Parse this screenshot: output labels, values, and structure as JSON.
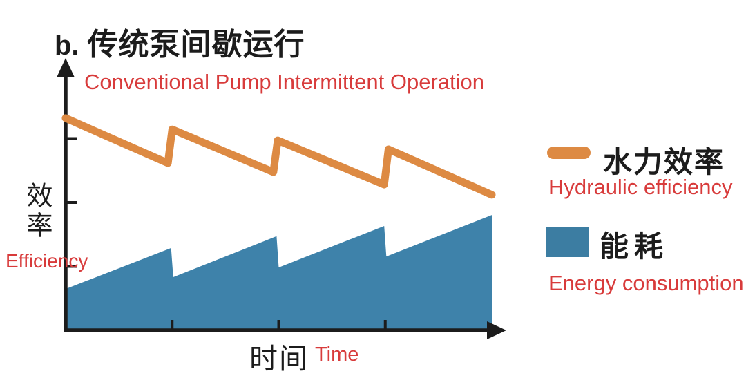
{
  "figure": {
    "panel_letter": "b.",
    "title_zh": "传统泵间歇运行",
    "title_en": "Conventional Pump Intermittent Operation"
  },
  "axes": {
    "y": {
      "label_zh": "效率",
      "label_en": "Efficiency"
    },
    "x": {
      "label_zh": "时间",
      "label_en": "Time"
    }
  },
  "legend": {
    "items": [
      {
        "key": "hydraulic-efficiency",
        "swatch": "line",
        "color": "#DD8A43",
        "label_zh": "水力效率",
        "label_en": "Hydraulic efficiency"
      },
      {
        "key": "energy-consumption",
        "swatch": "area",
        "color": "#3C7DA2",
        "label_zh": "能耗",
        "label_en": "Energy consumption"
      }
    ]
  },
  "colors": {
    "ink": "#1C1C1C",
    "red_accent": "#D83B3B",
    "hydraulic_orange": "#DD8A43",
    "energy_blue": "#3E82AA",
    "background": "#FFFFFF"
  },
  "chart_data": {
    "type": "line",
    "title_zh": "传统泵间歇运行",
    "title_en": "Conventional Pump Intermittent Operation",
    "xlabel_zh": "时间",
    "xlabel_en": "Time",
    "ylabel_zh": "效率",
    "ylabel_en": "Efficiency",
    "x_range": [
      0,
      4
    ],
    "y_range": [
      0,
      100
    ],
    "x_ticks": [
      1,
      2,
      3
    ],
    "y_ticks": [
      25,
      50,
      75
    ],
    "tick_labels_shown": false,
    "axis_arrows": true,
    "grid": false,
    "legend_position": "right",
    "series": [
      {
        "name_zh": "水力效率",
        "name_en": "Hydraulic efficiency",
        "style": "line",
        "color": "#DD8A43",
        "points": [
          [
            0,
            83.0
          ],
          [
            0.96,
            65.4
          ],
          [
            1.0,
            78.6
          ],
          [
            1.95,
            61.9
          ],
          [
            1.99,
            74.3
          ],
          [
            2.99,
            57.0
          ],
          [
            3.03,
            70.8
          ],
          [
            4.0,
            53.0
          ]
        ]
      },
      {
        "name_zh": "能耗",
        "name_en": "Energy consumption",
        "style": "filled_area",
        "color": "#3E82AA",
        "points": [
          [
            0,
            16.2
          ],
          [
            0.99,
            32.2
          ],
          [
            1.01,
            20.8
          ],
          [
            1.98,
            36.8
          ],
          [
            2.0,
            24.6
          ],
          [
            2.99,
            40.8
          ],
          [
            3.01,
            28.9
          ],
          [
            4.0,
            45.1
          ]
        ]
      }
    ]
  }
}
